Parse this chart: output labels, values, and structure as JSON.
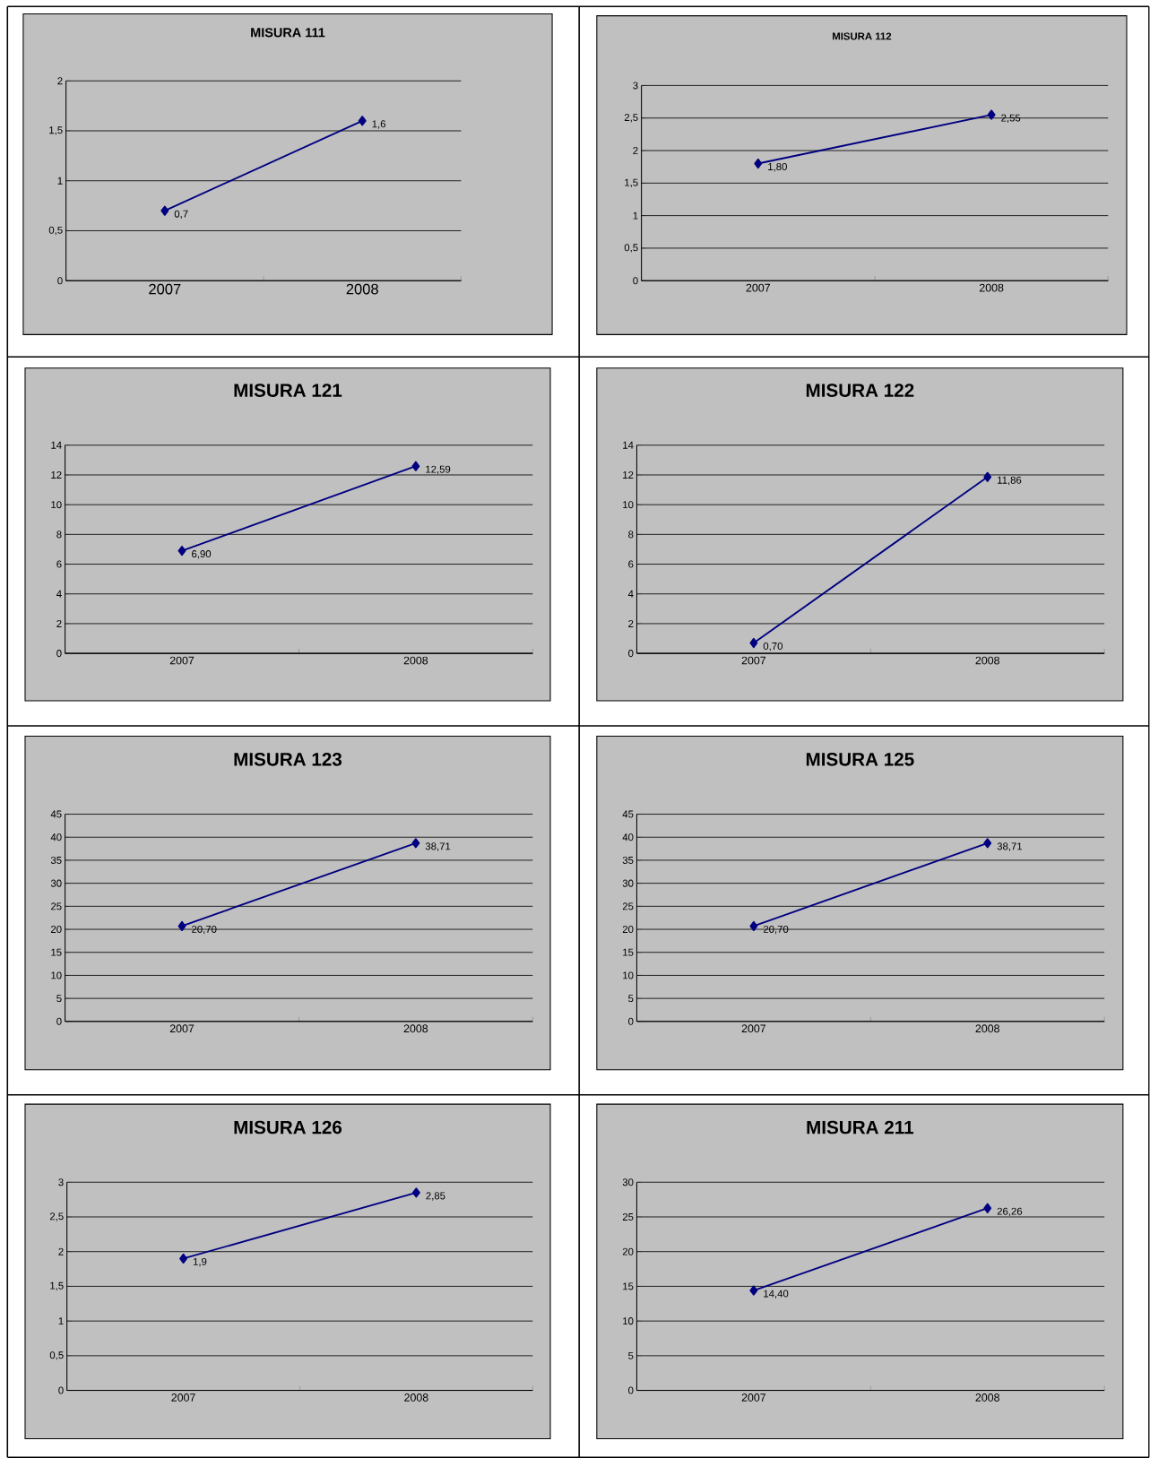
{
  "chart_data": [
    {
      "type": "line",
      "title": "MISURA 111",
      "categories": [
        "2007",
        "2008"
      ],
      "values": [
        0.7,
        1.6
      ],
      "value_labels": [
        "0,7",
        "1,6"
      ],
      "color": "#000080",
      "marker": "diamond",
      "grid": "y",
      "ylim": [
        0,
        2
      ],
      "yticks": [
        0,
        {
          "value": 0.5,
          "label": "0,5"
        },
        1,
        {
          "value": 1.5,
          "label": "1,5"
        },
        2
      ]
    },
    {
      "type": "line",
      "title": "MISURA 112",
      "categories": [
        "2007",
        "2008"
      ],
      "values": [
        1.8,
        2.55
      ],
      "value_labels": [
        "1,80",
        "2,55"
      ],
      "color": "#000080",
      "marker": "diamond",
      "grid": "y",
      "ylim": [
        0,
        3
      ],
      "yticks": [
        0,
        {
          "value": 0.5,
          "label": "0,5"
        },
        1,
        {
          "value": 1.5,
          "label": "1,5"
        },
        2,
        {
          "value": 2.5,
          "label": "2,5"
        },
        3
      ]
    },
    {
      "type": "line",
      "title": "MISURA 121",
      "categories": [
        "2007",
        "2008"
      ],
      "values": [
        6.9,
        12.59
      ],
      "value_labels": [
        "6,90",
        "12,59"
      ],
      "color": "#000080",
      "marker": "diamond",
      "grid": "y",
      "ylim": [
        0,
        14
      ],
      "yticks": [
        0,
        2,
        4,
        6,
        8,
        10,
        12,
        14
      ]
    },
    {
      "type": "line",
      "title": "MISURA 122",
      "categories": [
        "2007",
        "2008"
      ],
      "values": [
        0.7,
        11.86
      ],
      "value_labels": [
        "0,70",
        "11,86"
      ],
      "color": "#000080",
      "marker": "diamond",
      "grid": "y",
      "ylim": [
        0,
        14
      ],
      "yticks": [
        0,
        2,
        4,
        6,
        8,
        10,
        12,
        14
      ]
    },
    {
      "type": "line",
      "title": "MISURA 123",
      "categories": [
        "2007",
        "2008"
      ],
      "values": [
        20.7,
        38.71
      ],
      "value_labels": [
        "20,70",
        "38,71"
      ],
      "color": "#000080",
      "marker": "diamond",
      "grid": "y",
      "ylim": [
        0,
        45
      ],
      "yticks": [
        0,
        5,
        10,
        15,
        20,
        25,
        30,
        35,
        40,
        45
      ]
    },
    {
      "type": "line",
      "title": "MISURA 125",
      "categories": [
        "2007",
        "2008"
      ],
      "values": [
        20.7,
        38.71
      ],
      "value_labels": [
        "20,70",
        "38,71"
      ],
      "color": "#000080",
      "marker": "diamond",
      "grid": "y",
      "ylim": [
        0,
        45
      ],
      "yticks": [
        0,
        5,
        10,
        15,
        20,
        25,
        30,
        35,
        40,
        45
      ]
    },
    {
      "type": "line",
      "title": "MISURA 126",
      "categories": [
        "2007",
        "2008"
      ],
      "values": [
        1.9,
        2.85
      ],
      "value_labels": [
        "1,9",
        "2,85"
      ],
      "color": "#000080",
      "marker": "diamond",
      "grid": "y",
      "ylim": [
        0,
        3
      ],
      "yticks": [
        0,
        {
          "value": 0.5,
          "label": "0,5"
        },
        1,
        {
          "value": 1.5,
          "label": "1,5"
        },
        2,
        {
          "value": 2.5,
          "label": "2,5"
        },
        3
      ]
    },
    {
      "type": "line",
      "title": "MISURA 211",
      "categories": [
        "2007",
        "2008"
      ],
      "values": [
        14.4,
        26.26
      ],
      "value_labels": [
        "14,40",
        "26,26"
      ],
      "color": "#000080",
      "marker": "diamond",
      "grid": "y",
      "ylim": [
        0,
        30
      ],
      "yticks": [
        0,
        5,
        10,
        15,
        20,
        25,
        30
      ]
    }
  ]
}
